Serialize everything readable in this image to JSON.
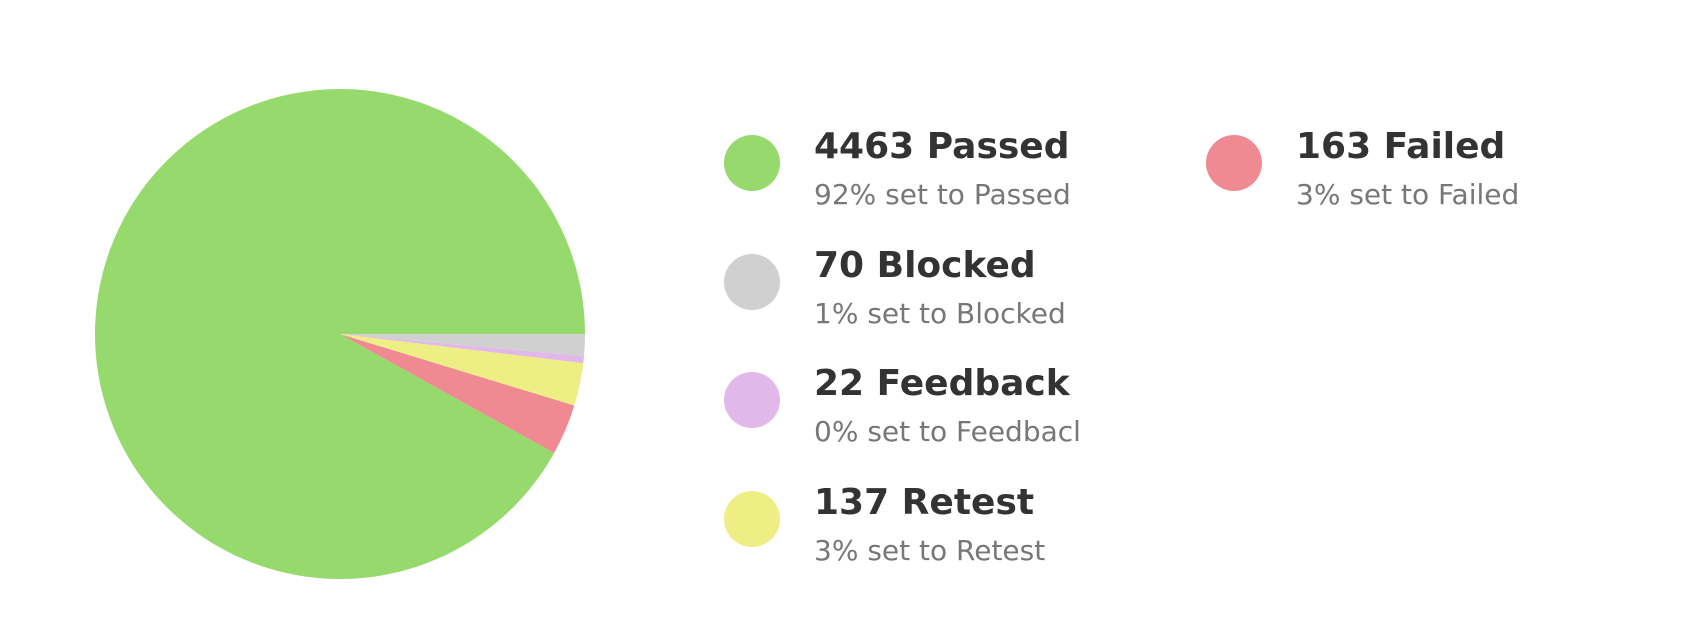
{
  "chart_data": {
    "type": "pie",
    "slices": [
      {
        "label": "Passed",
        "value": 4463,
        "color": "#96DA6E",
        "title": "4463 Passed",
        "subtitle": "92% set to Passed"
      },
      {
        "label": "Failed",
        "value": 163,
        "color": "#F08A92",
        "title": "163 Failed",
        "subtitle": "3% set to Failed"
      },
      {
        "label": "Retest",
        "value": 137,
        "color": "#EDEE84",
        "title": "137 Retest",
        "subtitle": "3% set to Retest"
      },
      {
        "label": "Feedback",
        "value": 22,
        "color": "#E2B7E9",
        "title": "22 Feedback",
        "subtitle": "0% set to Feedbacl"
      },
      {
        "label": "Blocked",
        "value": 70,
        "color": "#D0D0D0",
        "title": "70 Blocked",
        "subtitle": "1% set to Blocked"
      }
    ],
    "legend_placement": "right"
  }
}
